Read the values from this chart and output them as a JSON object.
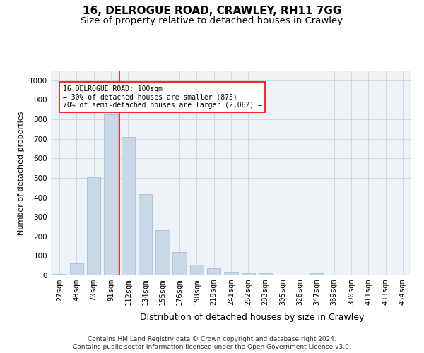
{
  "title1": "16, DELROGUE ROAD, CRAWLEY, RH11 7GG",
  "title2": "Size of property relative to detached houses in Crawley",
  "xlabel": "Distribution of detached houses by size in Crawley",
  "ylabel": "Number of detached properties",
  "categories": [
    "27sqm",
    "48sqm",
    "70sqm",
    "91sqm",
    "112sqm",
    "134sqm",
    "155sqm",
    "176sqm",
    "198sqm",
    "219sqm",
    "241sqm",
    "262sqm",
    "283sqm",
    "305sqm",
    "326sqm",
    "347sqm",
    "369sqm",
    "390sqm",
    "411sqm",
    "433sqm",
    "454sqm"
  ],
  "values": [
    8,
    60,
    505,
    825,
    710,
    417,
    230,
    120,
    55,
    35,
    17,
    12,
    10,
    0,
    0,
    10,
    0,
    0,
    0,
    0,
    0
  ],
  "bar_color": "#c8d8e8",
  "bar_edge_color": "#a0b8cc",
  "bar_width": 0.8,
  "vline_color": "red",
  "annotation_text": "16 DELROGUE ROAD: 100sqm\n← 30% of detached houses are smaller (875)\n70% of semi-detached houses are larger (2,062) →",
  "annotation_box_color": "white",
  "annotation_box_edge_color": "red",
  "ylim": [
    0,
    1050
  ],
  "yticks": [
    0,
    100,
    200,
    300,
    400,
    500,
    600,
    700,
    800,
    900,
    1000
  ],
  "grid_color": "#d0d8e0",
  "bg_color": "#eef2f6",
  "footnote1": "Contains HM Land Registry data © Crown copyright and database right 2024.",
  "footnote2": "Contains public sector information licensed under the Open Government Licence v3.0.",
  "title1_fontsize": 11,
  "title2_fontsize": 9.5,
  "xlabel_fontsize": 9,
  "ylabel_fontsize": 8,
  "tick_fontsize": 7.5,
  "footnote_fontsize": 6.5
}
